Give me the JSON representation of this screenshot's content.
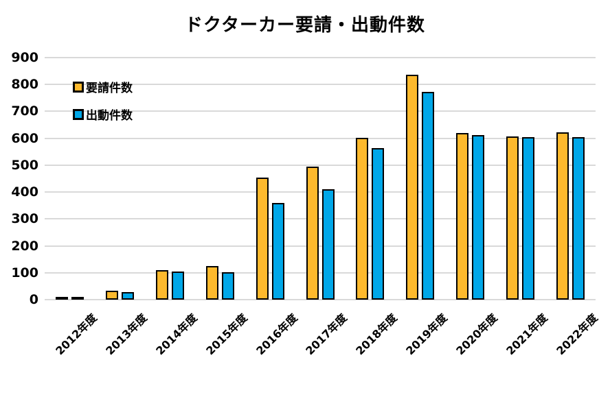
{
  "chart_data": {
    "type": "bar",
    "title": "ドクターカー要請・出動件数",
    "categories": [
      "2012年度",
      "2013年度",
      "2014年度",
      "2015年度",
      "2016年度",
      "2017年度",
      "2018年度",
      "2019年度",
      "2020年度",
      "2021年度",
      "2022年度"
    ],
    "series": [
      {
        "name": "要請件数",
        "color": "#FDB92D",
        "values": [
          8,
          34,
          110,
          125,
          454,
          494,
          602,
          835,
          619,
          606,
          623
        ]
      },
      {
        "name": "出動件数",
        "color": "#00A7E8",
        "values": [
          5,
          27,
          104,
          101,
          359,
          410,
          564,
          772,
          613,
          603,
          603
        ]
      }
    ],
    "xlabel": "",
    "ylabel": "",
    "ylim": [
      0,
      900
    ],
    "ytick_step": 100,
    "grid": true,
    "legend_position": "top-left",
    "colors": {
      "bar_outline": "#000000",
      "gridline": "#D9D9D9",
      "text": "#000000",
      "background": "#FFFFFF"
    }
  }
}
